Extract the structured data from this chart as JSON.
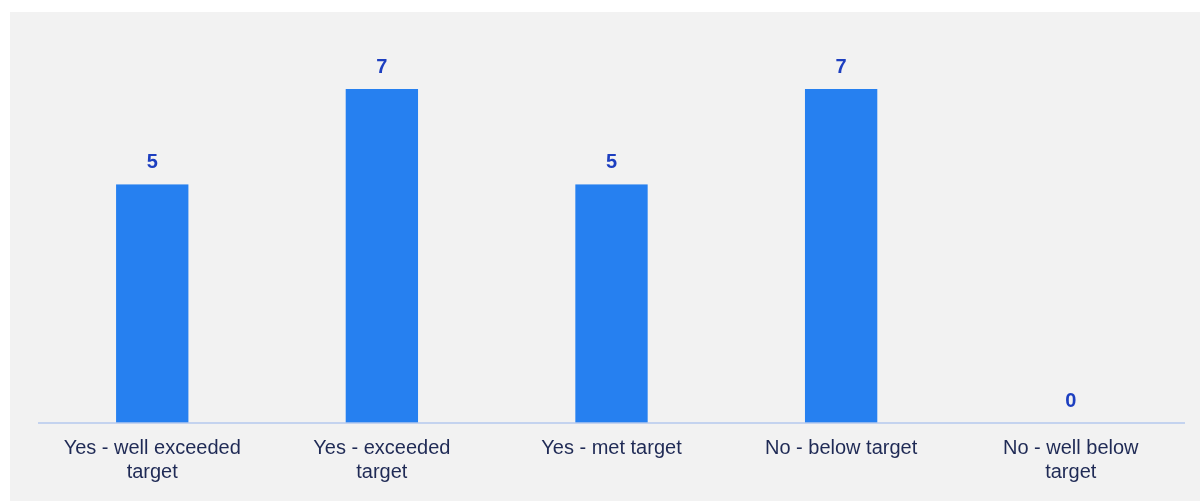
{
  "chart_data": {
    "type": "bar",
    "categories": [
      "Yes - well exceeded target",
      "Yes - exceeded target",
      "Yes - met target",
      "No - below target",
      "No - well below target"
    ],
    "values": [
      5,
      7,
      5,
      7,
      0
    ],
    "color": "#2680f0",
    "data_labels": true
  }
}
